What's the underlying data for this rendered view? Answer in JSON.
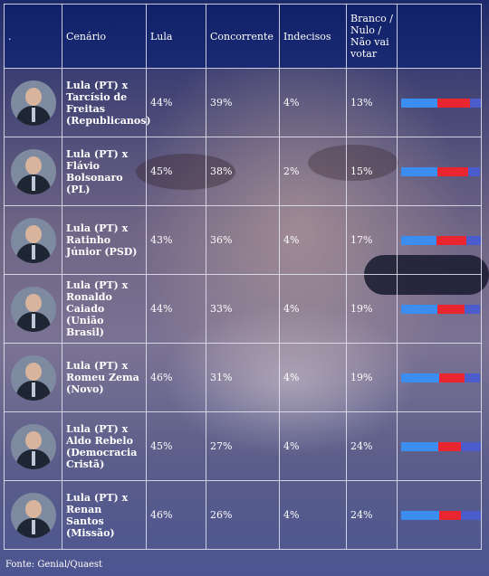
{
  "header": {
    "col0": ".",
    "col1": "Cenário",
    "col2": "Lula",
    "col3": "Concorrente",
    "col4": "Indecisos",
    "col5": "Branco / Nulo / Não vai votar"
  },
  "rows": [
    {
      "scenario": "Lula (PT) x Tarcísio de Freitas (Republicanos)",
      "lula": "44%",
      "rival": "39%",
      "undecided": "4%",
      "blank": "13%",
      "lula_val": 44,
      "rival_val": 39,
      "blank_val": 13
    },
    {
      "scenario": "Lula (PT) x Flávio Bolsonaro (PL)",
      "lula": "45%",
      "rival": "38%",
      "undecided": "2%",
      "blank": "15%",
      "lula_val": 45,
      "rival_val": 38,
      "blank_val": 15
    },
    {
      "scenario": "Lula (PT) x Ratinho Júnior (PSD)",
      "lula": "43%",
      "rival": "36%",
      "undecided": "4%",
      "blank": "17%",
      "lula_val": 43,
      "rival_val": 36,
      "blank_val": 17
    },
    {
      "scenario": "Lula (PT) x Ronaldo Caiado (União Brasil)",
      "lula": "44%",
      "rival": "33%",
      "undecided": "4%",
      "blank": "19%",
      "lula_val": 44,
      "rival_val": 33,
      "blank_val": 19
    },
    {
      "scenario": "Lula (PT) x Romeu Zema (Novo)",
      "lula": "46%",
      "rival": "31%",
      "undecided": "4%",
      "blank": "19%",
      "lula_val": 46,
      "rival_val": 31,
      "blank_val": 19
    },
    {
      "scenario": "Lula (PT) x Aldo Rebelo (Democracia Cristã)",
      "lula": "45%",
      "rival": "27%",
      "undecided": "4%",
      "blank": "24%",
      "lula_val": 45,
      "rival_val": 27,
      "blank_val": 24
    },
    {
      "scenario": "Lula (PT) x Renan Santos (Missão)",
      "lula": "46%",
      "rival": "26%",
      "undecided": "4%",
      "blank": "24%",
      "lula_val": 46,
      "rival_val": 26,
      "blank_val": 24
    }
  ],
  "colors": {
    "lula": "#3b8df0",
    "rival": "#e9252f",
    "blank": "#4b5dcc"
  },
  "source": "Fonte: Genial/Quaest"
}
